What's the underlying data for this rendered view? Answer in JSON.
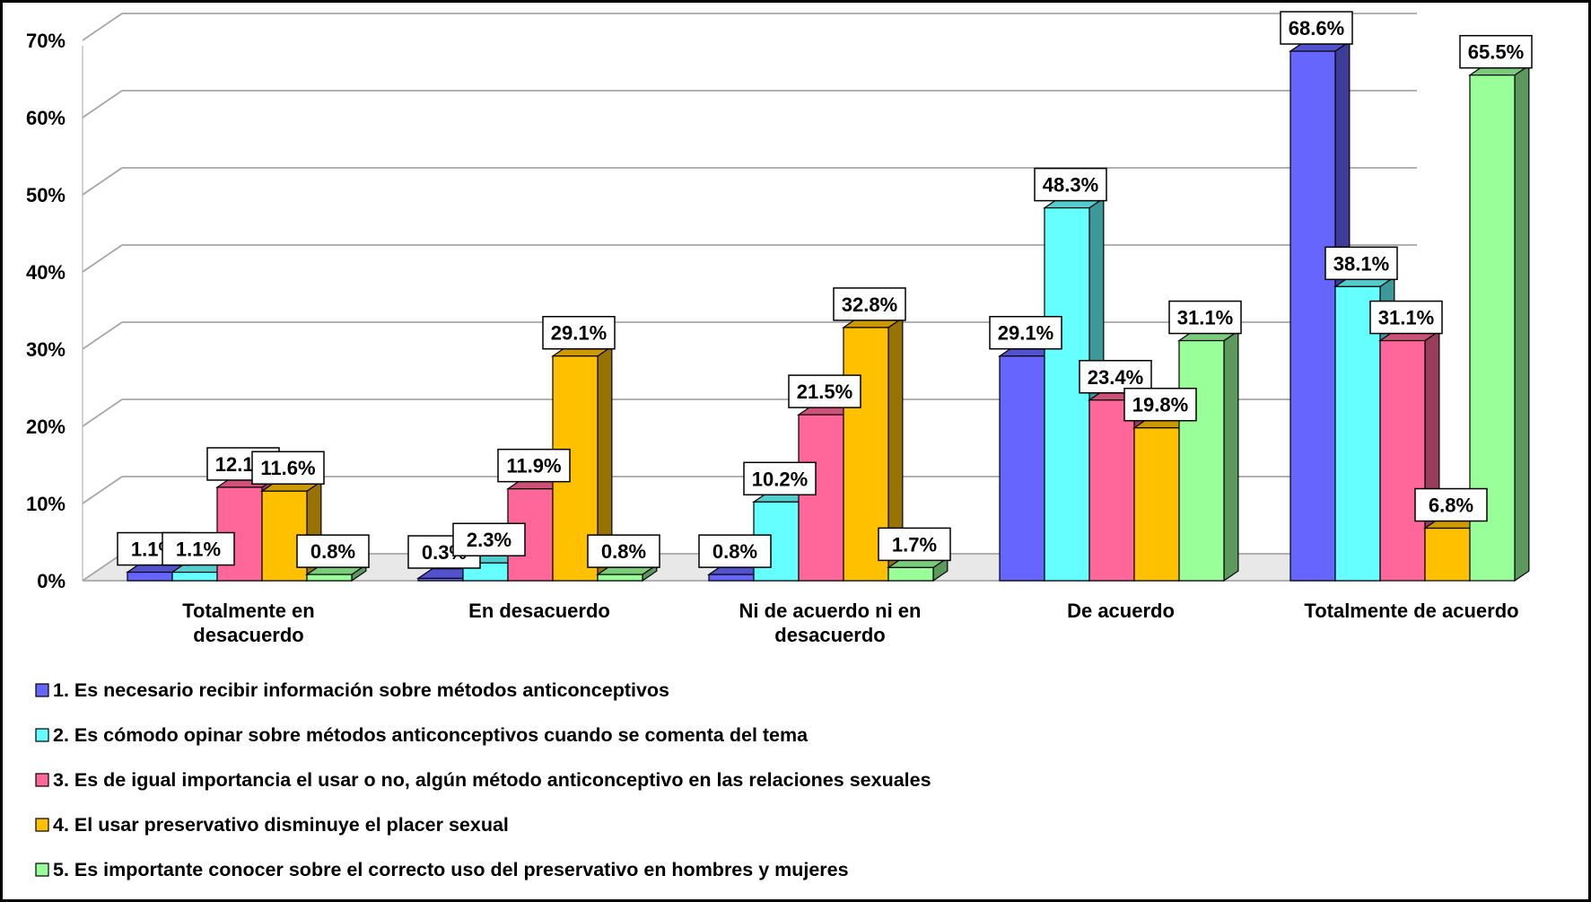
{
  "chart_data": {
    "type": "bar",
    "categories": [
      "Totalmente en desacuerdo",
      "En desacuerdo",
      "Ni de acuerdo ni en desacuerdo",
      "De acuerdo",
      "Totalmente de acuerdo"
    ],
    "series": [
      {
        "name": "1. Es necesario recibir información sobre métodos anticonceptivos",
        "color": "#6666ff",
        "values": [
          1.1,
          0.3,
          0.8,
          29.1,
          68.6
        ],
        "labels": [
          "1.1%",
          "0.3%",
          "0.8%",
          "29.1%",
          "68.6%"
        ]
      },
      {
        "name": "2. Es cómodo opinar sobre métodos anticonceptivos cuando se comenta del tema",
        "color": "#66ffff",
        "values": [
          1.1,
          2.3,
          10.2,
          48.3,
          38.1
        ],
        "labels": [
          "1.1%",
          "2.3%",
          "10.2%",
          "48.3%",
          "38.1%"
        ]
      },
      {
        "name": "3. Es de igual importancia el usar o no, algún método anticonceptivo en las relaciones sexuales",
        "color": "#ff6699",
        "values": [
          12.1,
          11.9,
          21.5,
          23.4,
          31.1
        ],
        "labels": [
          "12.1%",
          "11.9%",
          "21.5%",
          "23.4%",
          "31.1%"
        ]
      },
      {
        "name": "4. El usar preservativo disminuye el placer sexual",
        "color": "#ffc000",
        "values": [
          11.6,
          29.1,
          32.8,
          19.8,
          6.8
        ],
        "labels": [
          "11.6%",
          "29.1%",
          "32.8%",
          "19.8%",
          "6.8%"
        ]
      },
      {
        "name": "5. Es importante conocer sobre el correcto uso del preservativo en hombres y mujeres",
        "color": "#99ff99",
        "values": [
          0.8,
          0.8,
          1.7,
          31.1,
          65.5
        ],
        "labels": [
          "0.8%",
          "0.8%",
          "1.7%",
          "31.1%",
          "65.5%"
        ]
      }
    ],
    "ylim": [
      0,
      70
    ],
    "yticks": [
      "0%",
      "10%",
      "20%",
      "30%",
      "40%",
      "50%",
      "60%",
      "70%"
    ],
    "grid": true,
    "style": "3d-clustered-column",
    "legend_position": "bottom",
    "title": "",
    "xlabel": "",
    "ylabel": ""
  }
}
